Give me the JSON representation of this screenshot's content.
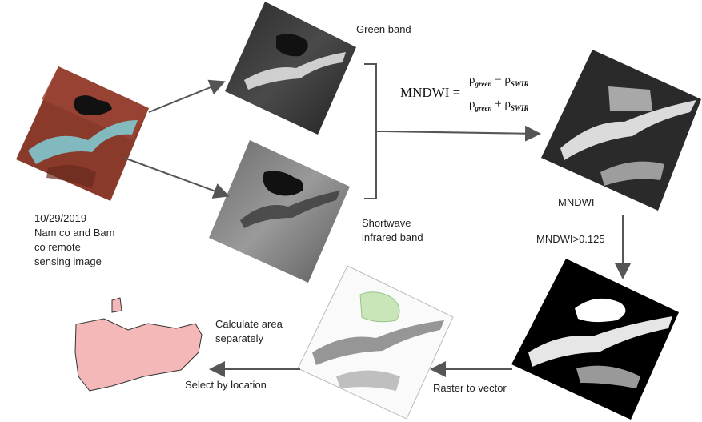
{
  "labels": {
    "green_band": "Green band",
    "swir_band": "Shortwave\ninfrared band",
    "source_image": "10/29/2019\nNam co and Bam\nco remote\nsensing image",
    "mndwi": "MNDWI",
    "threshold": "MNDWI>0.125",
    "raster_to_vector": "Raster to vector",
    "select_by_location": "Select by location",
    "calculate_area": "Calculate area\nseparately"
  },
  "formula": {
    "lhs": "MNDWI =",
    "numerator": "ρgreen − ρSWIR",
    "denominator": "ρgreen + ρSWIR"
  },
  "colors": {
    "arrow": "#555555",
    "false_color_base": "#8a3a2a",
    "snow_cyan": "#7fd0d8",
    "vector_fill": "#c8e6b8",
    "lake_polygon": "#f4b8b8"
  }
}
